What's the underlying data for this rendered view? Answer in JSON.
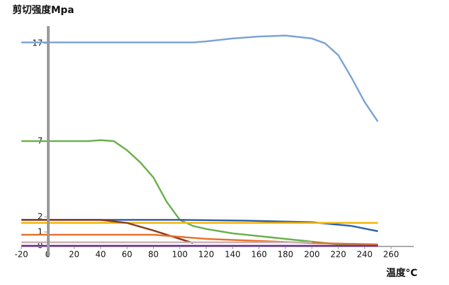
{
  "chart_data": {
    "type": "line",
    "title": "剪切强度Mpa",
    "x_label": "温度°C",
    "xlim": [
      -20,
      260
    ],
    "xticks": [
      -20,
      0,
      20,
      40,
      60,
      80,
      100,
      120,
      140,
      160,
      180,
      200,
      220,
      240,
      260
    ],
    "ylim": [
      0,
      17.9
    ],
    "yticks": [
      0,
      1,
      2,
      7,
      17
    ],
    "series": [
      {
        "color": "#7ba3d8",
        "x": [
          -20,
          100,
          110,
          120,
          140,
          160,
          180,
          200,
          210,
          220,
          230,
          240,
          250
        ],
        "values": [
          17.1,
          17.1,
          17.1,
          17.2,
          17.5,
          17.7,
          17.8,
          17.5,
          17.0,
          15.8,
          13.5,
          11,
          9
        ]
      },
      {
        "color": "#6ab04c",
        "x": [
          -20,
          30,
          40,
          50,
          60,
          70,
          80,
          90,
          100,
          110,
          120,
          140,
          160,
          180,
          200,
          220,
          250
        ],
        "values": [
          7,
          7,
          7.1,
          7,
          6.4,
          5.6,
          4.6,
          3,
          1.8,
          1.4,
          1.2,
          0.9,
          0.7,
          0.5,
          0.3,
          0.1,
          0.05
        ]
      },
      {
        "color": "#2e5fa8",
        "x": [
          -20,
          100,
          150,
          200,
          230,
          250
        ],
        "values": [
          1.8,
          1.8,
          1.75,
          1.65,
          1.4,
          1.05
        ]
      },
      {
        "color": "#f5b400",
        "x": [
          -20,
          250
        ],
        "values": [
          1.6,
          1.6
        ]
      },
      {
        "color": "#8b3a1a",
        "x": [
          -20,
          40,
          60,
          80,
          100,
          110
        ],
        "values": [
          1.8,
          1.8,
          1.6,
          1.1,
          0.5,
          0.2
        ]
      },
      {
        "color": "#e8702a",
        "x": [
          -20,
          80,
          120,
          200,
          250
        ],
        "values": [
          0.8,
          0.8,
          0.5,
          0.2,
          0.1
        ]
      },
      {
        "color": "#c8b0b0",
        "x": [
          -20,
          200
        ],
        "values": [
          0.25,
          0.25
        ]
      },
      {
        "color": "#7030a0",
        "x": [
          -20,
          250
        ],
        "values": [
          0,
          0
        ]
      }
    ]
  }
}
